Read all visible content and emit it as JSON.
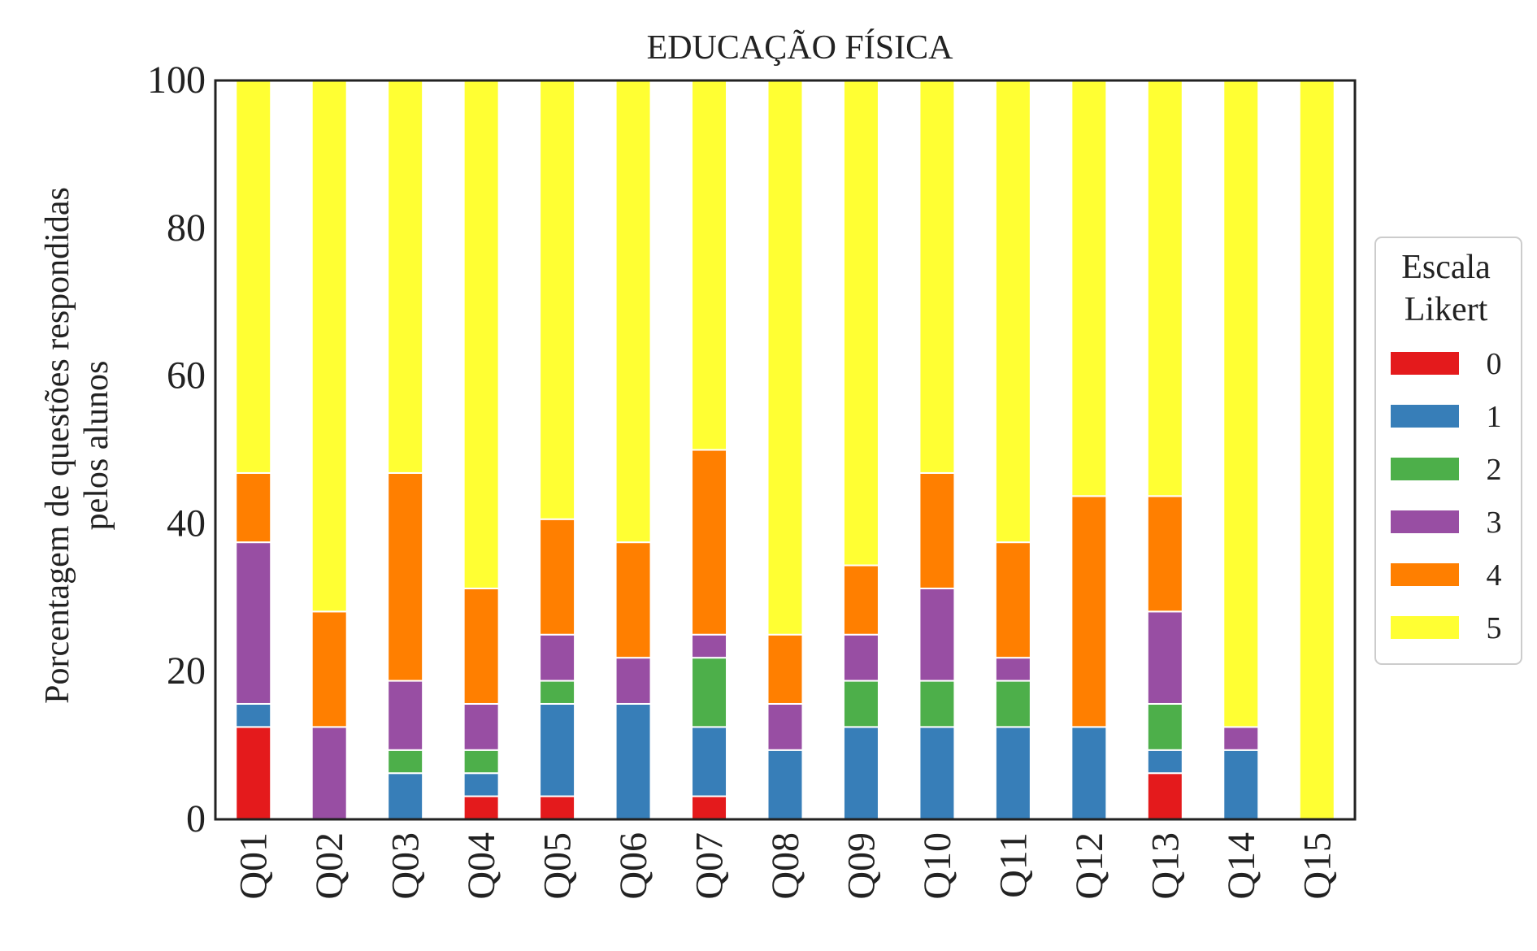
{
  "chart_data": {
    "type": "bar",
    "stacked": true,
    "title": "EDUCAÇÃO FÍSICA",
    "xlabel": "",
    "ylabel_lines": [
      "Porcentagem de questões respondidas",
      "pelos alunos"
    ],
    "ylim": [
      0,
      100
    ],
    "yticks": [
      0,
      20,
      40,
      60,
      80,
      100
    ],
    "grid": false,
    "legend": {
      "title_lines": [
        "Escala",
        "Likert"
      ],
      "placement": "right"
    },
    "categories": [
      "Q01",
      "Q02",
      "Q03",
      "Q04",
      "Q05",
      "Q06",
      "Q07",
      "Q08",
      "Q09",
      "Q10",
      "Q11",
      "Q12",
      "Q13",
      "Q14",
      "Q15"
    ],
    "series": [
      {
        "name": "0",
        "color": "#e41a1c",
        "values": [
          12.5,
          0,
          0,
          3.125,
          3.125,
          0,
          3.125,
          0,
          0,
          0,
          0,
          0,
          6.25,
          0,
          0
        ]
      },
      {
        "name": "1",
        "color": "#377eb8",
        "values": [
          3.125,
          0,
          6.25,
          3.125,
          12.5,
          15.625,
          9.375,
          9.375,
          12.5,
          12.5,
          12.5,
          12.5,
          3.125,
          9.375,
          0
        ]
      },
      {
        "name": "2",
        "color": "#4daf4a",
        "values": [
          0,
          0,
          3.125,
          3.125,
          3.125,
          0,
          9.375,
          0,
          6.25,
          6.25,
          6.25,
          0,
          6.25,
          0,
          0
        ]
      },
      {
        "name": "3",
        "color": "#984ea3",
        "values": [
          21.875,
          12.5,
          9.375,
          6.25,
          6.25,
          6.25,
          3.125,
          6.25,
          6.25,
          12.5,
          3.125,
          0,
          12.5,
          3.125,
          0
        ]
      },
      {
        "name": "4",
        "color": "#ff7f00",
        "values": [
          9.375,
          15.625,
          28.125,
          15.625,
          15.625,
          15.625,
          25,
          9.375,
          9.375,
          15.625,
          15.625,
          31.25,
          15.625,
          0,
          0
        ]
      },
      {
        "name": "5",
        "color": "#ffff33",
        "values": [
          53.125,
          71.875,
          53.125,
          68.75,
          59.375,
          62.5,
          50,
          75,
          65.625,
          53.125,
          62.5,
          56.25,
          56.25,
          87.5,
          100
        ]
      }
    ]
  }
}
